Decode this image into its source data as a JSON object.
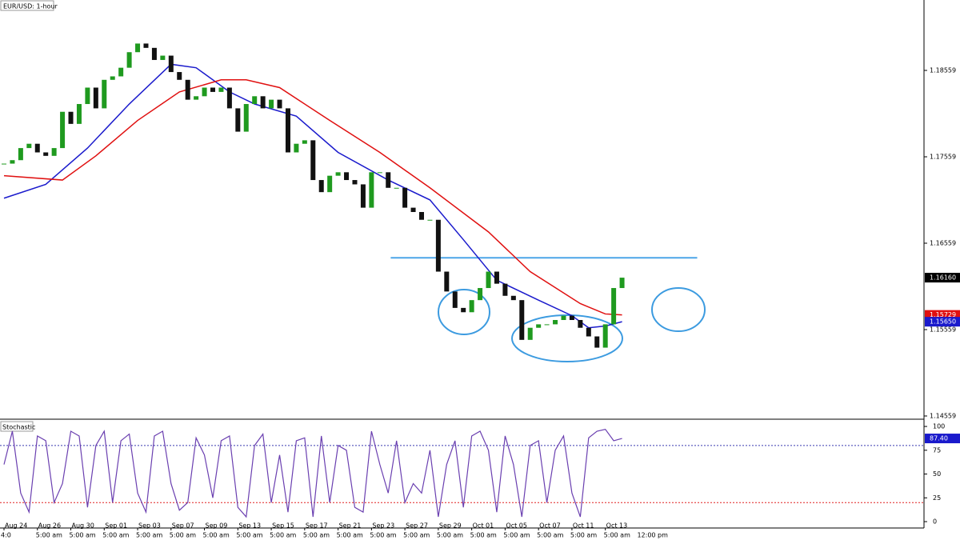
{
  "chart_data": [
    {
      "type": "candlestick",
      "title": "EUR/USD: 1-hour",
      "closes": [
        1.1748,
        1.1752,
        1.1766,
        1.1771,
        1.1761,
        1.1757,
        1.1766,
        1.1808,
        1.1794,
        1.1817,
        1.1836,
        1.1812,
        1.1845,
        1.1849,
        1.1859,
        1.1877,
        1.1887,
        1.1882,
        1.1868,
        1.1873,
        1.1854,
        1.1845,
        1.1822,
        1.1826,
        1.1836,
        1.1831,
        1.1836,
        1.1812,
        1.1785,
        1.1817,
        1.1826,
        1.1812,
        1.1822,
        1.1812,
        1.1761,
        1.1771,
        1.1775,
        1.1729,
        1.1715,
        1.1734,
        1.1738,
        1.1729,
        1.1724,
        1.1697,
        1.1738,
        1.1738,
        1.172,
        1.172,
        1.1697,
        1.1692,
        1.1683,
        1.1683,
        1.1623,
        1.16,
        1.1581,
        1.1576,
        1.159,
        1.1604,
        1.1623,
        1.1609,
        1.1595,
        1.159,
        1.1544,
        1.1558,
        1.1562,
        1.1562,
        1.1567,
        1.1572,
        1.1567,
        1.1558,
        1.1548,
        1.1535,
        1.1562,
        1.1604,
        1.1616
      ],
      "up_color": "#1f9a1f",
      "down_color": "#111111",
      "moving_averages": [
        {
          "color": "#1a1acc",
          "x": [
            0,
            5,
            10,
            15,
            20,
            23,
            27,
            30,
            35,
            40,
            46,
            51,
            55,
            59,
            64,
            68,
            70,
            72,
            74
          ],
          "values": [
            1.1708,
            1.1724,
            1.1766,
            1.1817,
            1.1863,
            1.1859,
            1.1831,
            1.1817,
            1.1803,
            1.1761,
            1.1729,
            1.1706,
            1.166,
            1.1613,
            1.159,
            1.1572,
            1.1558,
            1.156,
            1.1565
          ]
        },
        {
          "color": "#e01010",
          "x": [
            0,
            7,
            11,
            16,
            21,
            26,
            29,
            33,
            39,
            45,
            51,
            58,
            63,
            69,
            72,
            74
          ],
          "values": [
            1.1734,
            1.1729,
            1.1757,
            1.1798,
            1.1831,
            1.1845,
            1.1845,
            1.1836,
            1.1798,
            1.1761,
            1.172,
            1.1669,
            1.1623,
            1.1586,
            1.1574,
            1.15729
          ]
        }
      ],
      "hline": {
        "value": 1.1639,
        "x": [
          46.3,
          83
        ],
        "color": "#4da6e8"
      },
      "ylim": [
        1.14531,
        1.19374
      ],
      "yticks": [
        {
          "value": 1.18559,
          "label": "1.18559"
        },
        {
          "value": 1.17559,
          "label": "1.17559"
        },
        {
          "value": 1.16559,
          "label": "1.16559"
        },
        {
          "value": 1.15559,
          "label": "1.15559"
        },
        {
          "value": 1.14559,
          "label": "1.14559"
        }
      ],
      "tags": [
        {
          "value": 1.1616,
          "label": "1.16160",
          "color": "#000000"
        },
        {
          "value": 1.15729,
          "label": "1.15729",
          "color": "#e01010"
        },
        {
          "value": 1.1565,
          "label": "1.15650",
          "color": "#1a1acc"
        }
      ],
      "x_dates": [
        "Aug 24",
        "Aug 26",
        "Aug 30",
        "Sep 01",
        "Sep 03",
        "Sep 07",
        "Sep 09",
        "Sep 13",
        "Sep 15",
        "Sep 17",
        "Sep 21",
        "Sep 23",
        "Sep 27",
        "Sep 29",
        "Oct 01",
        "Oct 05",
        "Oct 07",
        "Oct 11",
        "Oct 13"
      ],
      "x_times": [
        "4:0",
        "5:00 am",
        "5:00 am",
        "5:00 am",
        "5:00 am",
        "5:00 am",
        "5:00 am",
        "5:00 am",
        "5:00 am",
        "5:00 am",
        "5:00 am",
        "5:00 am",
        "5:00 am",
        "5:00 am",
        "5:00 am",
        "5:00 am",
        "5:00 am",
        "5:00 am",
        "5:00 am",
        "12:00 pm"
      ]
    },
    {
      "type": "line",
      "title": "Stochastic",
      "color": "#6a3fb0",
      "values": [
        60,
        95,
        30,
        10,
        90,
        85,
        20,
        40,
        95,
        90,
        15,
        80,
        95,
        20,
        85,
        92,
        30,
        10,
        90,
        95,
        40,
        12,
        20,
        88,
        70,
        25,
        85,
        90,
        15,
        5,
        80,
        92,
        20,
        70,
        10,
        85,
        88,
        5,
        90,
        20,
        80,
        75,
        15,
        10,
        95,
        60,
        30,
        85,
        20,
        40,
        30,
        75,
        5,
        60,
        85,
        15,
        90,
        95,
        75,
        10,
        90,
        60,
        5,
        80,
        85,
        20,
        75,
        90,
        30,
        5,
        88,
        95,
        97,
        85,
        87.4
      ],
      "levels": [
        {
          "value": 80,
          "color": "#3a3ab0"
        },
        {
          "value": 20,
          "color": "#e02020"
        }
      ],
      "ylim": [
        -6.7,
        105.1
      ],
      "yticks": [
        100,
        75,
        50,
        25,
        0
      ],
      "tags": [
        {
          "value": 87.4,
          "label": "87.40",
          "color": "#1a1acc"
        }
      ]
    }
  ]
}
